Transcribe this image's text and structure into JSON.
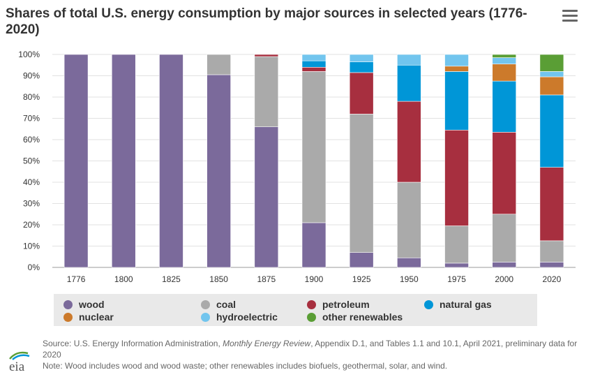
{
  "title": "Shares of total U.S. energy consumption by major sources in selected years (1776-2020)",
  "menu_icon": "hamburger-menu-icon",
  "logo_text": "eia",
  "chart_data": {
    "type": "bar",
    "stacked": true,
    "categories": [
      "1776",
      "1800",
      "1825",
      "1850",
      "1875",
      "1900",
      "1925",
      "1950",
      "1975",
      "2000",
      "2020"
    ],
    "y_ticks": [
      "0%",
      "10%",
      "20%",
      "30%",
      "40%",
      "50%",
      "60%",
      "70%",
      "80%",
      "90%",
      "100%"
    ],
    "ylim": [
      0,
      100
    ],
    "grid": true,
    "legend_position": "bottom",
    "series": [
      {
        "name": "wood",
        "color": "#7b6a9b",
        "values": [
          100,
          100,
          100,
          90.5,
          66,
          21,
          7,
          4.5,
          2,
          2.5,
          2.5
        ]
      },
      {
        "name": "coal",
        "color": "#aaaaaa",
        "values": [
          0,
          0,
          0,
          9.5,
          33,
          71,
          65,
          35.5,
          17.5,
          22.5,
          10
        ]
      },
      {
        "name": "petroleum",
        "color": "#a72f3f",
        "values": [
          0,
          0,
          0,
          0,
          1,
          2,
          19.5,
          38,
          45,
          38.5,
          34.5
        ]
      },
      {
        "name": "natural gas",
        "color": "#0096d7",
        "values": [
          0,
          0,
          0,
          0,
          0,
          3,
          5,
          17,
          27.5,
          24,
          34
        ]
      },
      {
        "name": "nuclear",
        "color": "#cc7a2b",
        "values": [
          0,
          0,
          0,
          0,
          0,
          0,
          0,
          0,
          2.5,
          8,
          8.5
        ]
      },
      {
        "name": "hydroelectric",
        "color": "#72c5ee",
        "values": [
          0,
          0,
          0,
          0,
          0,
          3,
          3.5,
          5,
          5.5,
          3,
          2.5
        ]
      },
      {
        "name": "other renewables",
        "color": "#5a9e35",
        "values": [
          0,
          0,
          0,
          0,
          0,
          0,
          0,
          0,
          0,
          1.5,
          8
        ]
      }
    ]
  },
  "source": {
    "prefix": "Source: U.S. Energy Information Administration, ",
    "italic": "Monthly Energy Review",
    "suffix": ", Appendix D.1, and Tables 1.1 and 10.1, April 2021, preliminary data for 2020"
  },
  "note": "Note: Wood includes wood and wood waste; other renewables includes biofuels, geothermal, solar, and wind."
}
